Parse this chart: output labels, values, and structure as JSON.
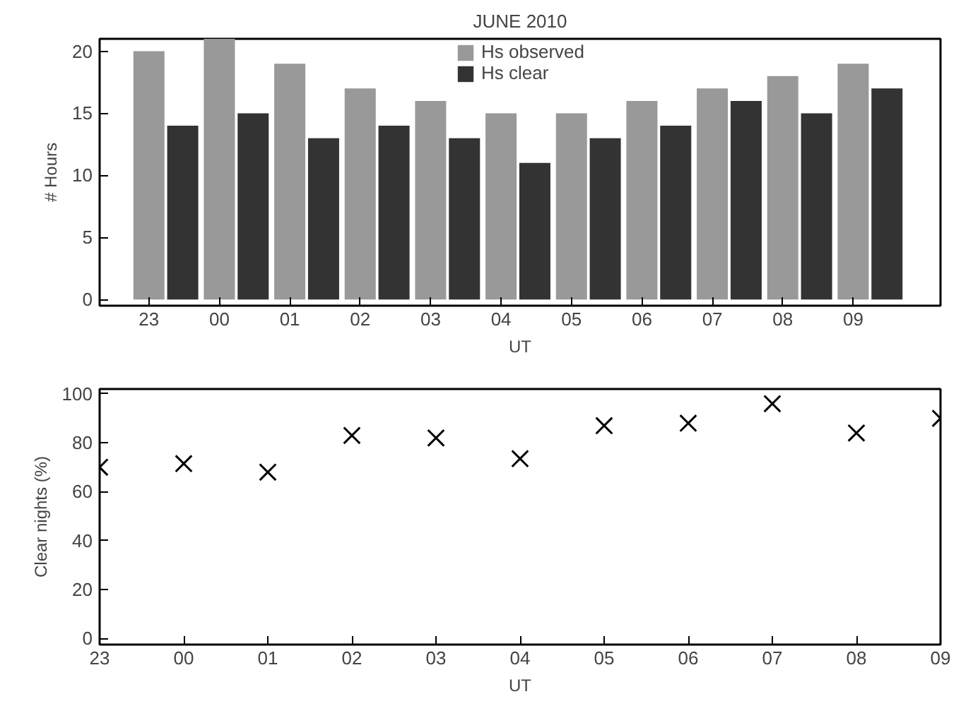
{
  "chart_data": [
    {
      "type": "bar",
      "title": "JUNE 2010",
      "xlabel": "UT",
      "ylabel": "# Hours",
      "categories": [
        "23",
        "00",
        "01",
        "02",
        "03",
        "04",
        "05",
        "06",
        "07",
        "08",
        "09"
      ],
      "series": [
        {
          "name": "Hs observed",
          "color": "#999999",
          "values": [
            20,
            21,
            19,
            17,
            16,
            15,
            15,
            16,
            17,
            18,
            19
          ]
        },
        {
          "name": "Hs clear",
          "color": "#333333",
          "values": [
            14,
            15,
            13,
            14,
            13,
            11,
            13,
            14,
            16,
            15,
            17
          ]
        }
      ],
      "ylim": [
        -0.5,
        21
      ],
      "yticks": [
        0,
        5,
        10,
        15,
        20
      ],
      "grid": false,
      "legend": "top"
    },
    {
      "type": "scatter",
      "xlabel": "UT",
      "ylabel": "Clear nights (%)",
      "categories": [
        "23",
        "00",
        "01",
        "02",
        "03",
        "04",
        "05",
        "06",
        "07",
        "08",
        "09"
      ],
      "series": [
        {
          "color": "#000000",
          "values": [
            70,
            71.5,
            68,
            83,
            82,
            73.5,
            87,
            88,
            96,
            84,
            90
          ]
        }
      ],
      "ylim": [
        -2.5,
        102
      ],
      "yticks": [
        0,
        20,
        40,
        60,
        80,
        100
      ],
      "grid": false,
      "marker": "cross"
    }
  ]
}
